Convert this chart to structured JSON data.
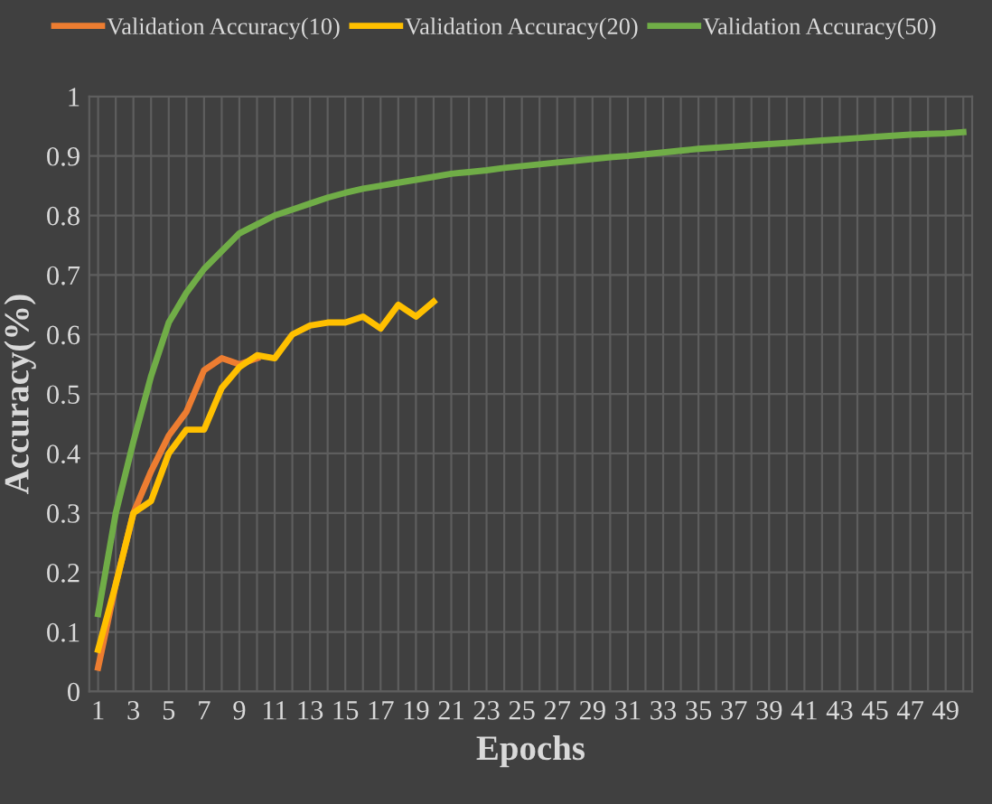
{
  "chart_data": {
    "type": "line",
    "xlabel": "Epochs",
    "ylabel": "Accuracy(%)",
    "categories": [
      "1",
      null,
      "3",
      null,
      "5",
      null,
      "7",
      null,
      "9",
      null,
      "11",
      null,
      "13",
      null,
      "15",
      null,
      "17",
      null,
      "19",
      null,
      "21",
      null,
      "23",
      null,
      "25",
      null,
      "27",
      null,
      "29",
      null,
      "31",
      null,
      "33",
      null,
      "35",
      null,
      "37",
      null,
      "39",
      null,
      "41",
      null,
      "43",
      null,
      "45",
      null,
      "47",
      null,
      "49",
      null
    ],
    "series": [
      {
        "name": "Validation Accuracy(10)",
        "color": "#ed7d31",
        "values": [
          0.04,
          0.18,
          0.3,
          0.37,
          0.43,
          0.47,
          0.54,
          0.56,
          0.55,
          0.56,
          null,
          null,
          null,
          null,
          null,
          null,
          null,
          null,
          null,
          null,
          null,
          null,
          null,
          null,
          null,
          null,
          null,
          null,
          null,
          null,
          null,
          null,
          null,
          null,
          null,
          null,
          null,
          null,
          null,
          null,
          null,
          null,
          null,
          null,
          null,
          null,
          null,
          null,
          null,
          null
        ]
      },
      {
        "name": "Validation Accuracy(20)",
        "color": "#ffc000",
        "values": [
          0.07,
          0.18,
          0.3,
          0.32,
          0.4,
          0.44,
          0.44,
          0.51,
          0.545,
          0.565,
          0.56,
          0.6,
          0.615,
          0.62,
          0.62,
          0.63,
          0.61,
          0.65,
          0.63,
          0.655,
          null,
          null,
          null,
          null,
          null,
          null,
          null,
          null,
          null,
          null,
          null,
          null,
          null,
          null,
          null,
          null,
          null,
          null,
          null,
          null,
          null,
          null,
          null,
          null,
          null,
          null,
          null,
          null,
          null,
          null
        ]
      },
      {
        "name": "Validation Accuracy(50)",
        "color": "#70ad47",
        "values": [
          0.13,
          0.3,
          0.42,
          0.53,
          0.62,
          0.67,
          0.71,
          0.74,
          0.77,
          0.785,
          0.8,
          0.81,
          0.82,
          0.83,
          0.838,
          0.845,
          0.85,
          0.855,
          0.86,
          0.865,
          0.87,
          0.873,
          0.876,
          0.88,
          0.883,
          0.886,
          0.889,
          0.892,
          0.895,
          0.898,
          0.9,
          0.903,
          0.906,
          0.909,
          0.912,
          0.914,
          0.916,
          0.918,
          0.92,
          0.922,
          0.924,
          0.926,
          0.928,
          0.93,
          0.932,
          0.934,
          0.936,
          0.937,
          0.938,
          0.94
        ]
      }
    ],
    "ylim": [
      0,
      1
    ],
    "yticks": [
      0,
      0.1,
      0.2,
      0.3,
      0.4,
      0.5,
      0.6,
      0.7,
      0.8,
      0.9,
      1
    ],
    "grid": true,
    "legend": "top",
    "marker": "none",
    "line_style": "solid"
  }
}
